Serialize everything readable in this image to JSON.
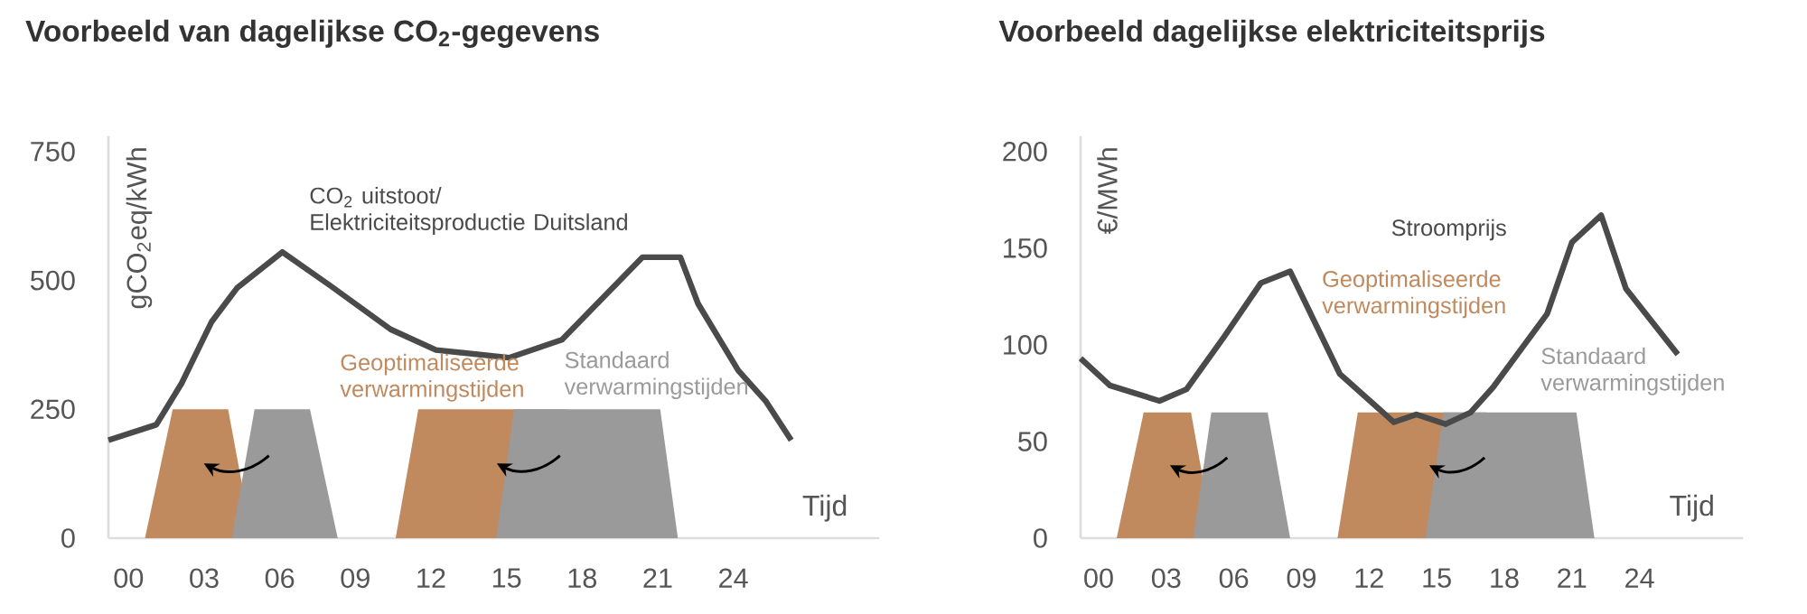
{
  "chart_data": [
    {
      "type": "line",
      "title": "Voorbeeld van dagelijkse CO$_{2}$-gegevens",
      "xlabel": "Tijd",
      "ylabel": "gCO$_{2}$eq/kWh",
      "xlim": [
        -0.8,
        29.8
      ],
      "ylim": [
        0,
        780
      ],
      "yticks": [
        0,
        250,
        500,
        750
      ],
      "xticks": [
        {
          "value": 0,
          "label": "00"
        },
        {
          "value": 3,
          "label": "03"
        },
        {
          "value": 6,
          "label": "06"
        },
        {
          "value": 9,
          "label": "09"
        },
        12,
        15,
        18,
        21,
        24
      ],
      "legend": false,
      "grid": false,
      "marker": "none",
      "series": [
        {
          "name": "CO$_{2}$ uitstoot/ Elektriciteitsproductie Duitsland",
          "color": "#4a4a4a",
          "x": [
            -0.8,
            1.1,
            2.1,
            3.3,
            4.3,
            6.1,
            8.0,
            10.4,
            12.2,
            15.1,
            17.2,
            20.4,
            21.9,
            22.6,
            24.2,
            25.3,
            26.3
          ],
          "values": [
            190,
            220,
            300,
            420,
            485,
            555,
            490,
            405,
            365,
            350,
            385,
            545,
            545,
            455,
            325,
            265,
            190
          ]
        },
        {
          "name": "Geoptimaliseerde verwarmingstijden",
          "type": "area",
          "color": "#c08a5e",
          "x": [
            0.65,
            1.75,
            3.95,
            4.9,
            7,
            10.6,
            11.5,
            17.4,
            17.9
          ],
          "values": [
            0,
            250,
            250,
            0,
            null,
            0,
            250,
            250,
            0
          ]
        },
        {
          "name": "Standaard verwarmingstijden",
          "type": "area",
          "color": "#9a9a9a",
          "x": [
            4.1,
            5.0,
            7.2,
            8.3,
            11,
            14.6,
            15.3,
            21.1,
            21.8
          ],
          "values": [
            0,
            250,
            250,
            0,
            null,
            0,
            250,
            250,
            0
          ]
        }
      ]
    },
    {
      "type": "line",
      "title": "Voorbeeld dagelijkse elektriciteitsprijs",
      "xlabel": "Tijd",
      "ylabel": "€/MWh",
      "xlim": [
        -0.8,
        28.6
      ],
      "ylim": [
        0,
        208
      ],
      "yticks": [
        0,
        50,
        100,
        150,
        200
      ],
      "xticks": [
        {
          "value": 0,
          "label": "00"
        },
        {
          "value": 3,
          "label": "03"
        },
        {
          "value": 6,
          "label": "06"
        },
        {
          "value": 9,
          "label": "09"
        },
        12,
        15,
        18,
        21,
        24
      ],
      "legend": false,
      "grid": false,
      "marker": "none",
      "series": [
        {
          "name": "Stroomprijs",
          "color": "#4a4a4a",
          "x": [
            -0.8,
            0.5,
            2.7,
            3.9,
            5.5,
            7.2,
            8.5,
            10.7,
            13.1,
            14.1,
            15.4,
            16.5,
            17.5,
            19.9,
            21.0,
            22.3,
            23.4,
            25.7
          ],
          "values": [
            93,
            79,
            71,
            77,
            103,
            132,
            138,
            85,
            60,
            64,
            59,
            65,
            78,
            116,
            153,
            167,
            129,
            95
          ]
        },
        {
          "name": "Geoptimaliseerde verwarmingstijden",
          "type": "area",
          "color": "#c08a5e",
          "x": [
            0.8,
            2.0,
            4.1,
            5.1,
            7,
            10.6,
            11.5,
            17.2,
            18.0
          ],
          "values": [
            0,
            65,
            65,
            0,
            null,
            0,
            65,
            65,
            0
          ]
        },
        {
          "name": "Standaard verwarmingstijden",
          "type": "area",
          "color": "#9a9a9a",
          "x": [
            4.2,
            5.0,
            7.5,
            8.5,
            11,
            14.5,
            15.3,
            21.2,
            22.0
          ],
          "values": [
            0,
            65,
            65,
            0,
            null,
            0,
            65,
            65,
            0
          ]
        }
      ]
    }
  ]
}
